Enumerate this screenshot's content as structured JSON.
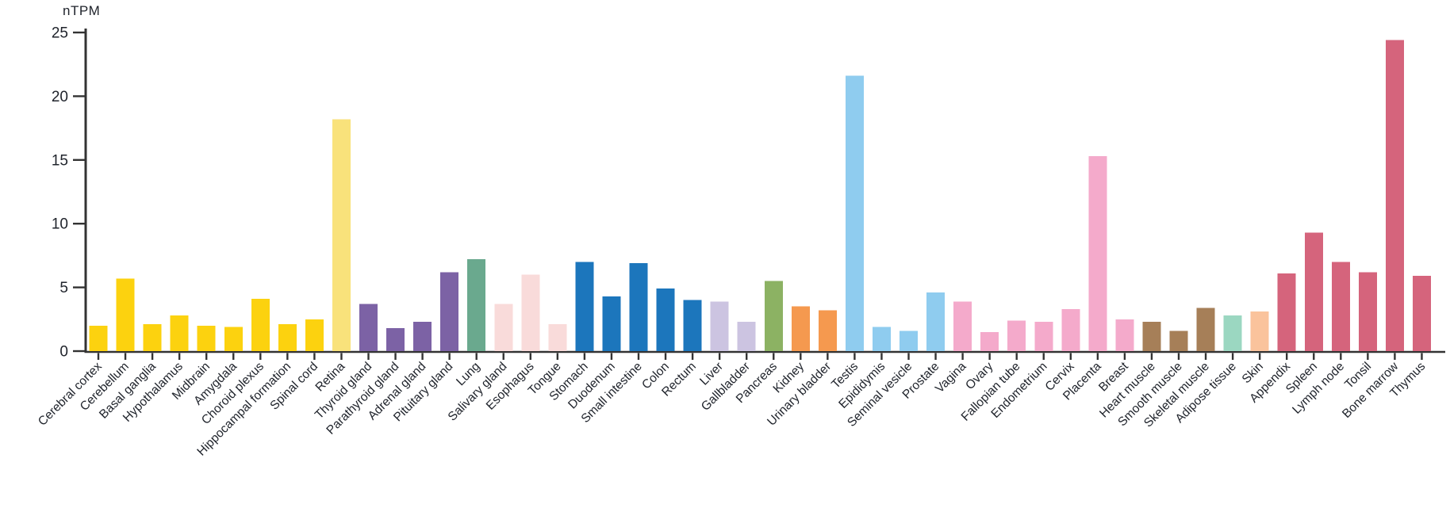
{
  "chart_data": {
    "type": "bar",
    "title": "",
    "ylabel": "nTPM",
    "xlabel": "",
    "ylim": [
      0,
      25
    ],
    "yticks": [
      0,
      5,
      10,
      15,
      20,
      25
    ],
    "grid": false,
    "legend_position": "none",
    "categories": [
      "Cerebral cortex",
      "Cerebellum",
      "Basal ganglia",
      "Hypothalamus",
      "Midbrain",
      "Amygdala",
      "Choroid plexus",
      "Hippocampal formation",
      "Spinal cord",
      "Retina",
      "Thyroid gland",
      "Parathyroid gland",
      "Adrenal gland",
      "Pituitary gland",
      "Lung",
      "Salivary gland",
      "Esophagus",
      "Tongue",
      "Stomach",
      "Duodenum",
      "Small intestine",
      "Colon",
      "Rectum",
      "Liver",
      "Gallbladder",
      "Pancreas",
      "Kidney",
      "Urinary bladder",
      "Testis",
      "Epididymis",
      "Seminal vesicle",
      "Prostate",
      "Vagina",
      "Ovary",
      "Fallopian tube",
      "Endometrium",
      "Cervix",
      "Placenta",
      "Breast",
      "Heart muscle",
      "Smooth muscle",
      "Skeletal muscle",
      "Adipose tissue",
      "Skin",
      "Appendix",
      "Spleen",
      "Lymph node",
      "Tonsil",
      "Bone marrow",
      "Thymus"
    ],
    "values": [
      2.0,
      5.7,
      2.1,
      2.8,
      2.0,
      1.9,
      4.1,
      2.1,
      2.5,
      18.2,
      3.7,
      1.8,
      2.3,
      6.2,
      7.2,
      3.7,
      6.0,
      2.1,
      7.0,
      4.3,
      6.9,
      4.9,
      4.0,
      3.9,
      2.3,
      5.5,
      3.5,
      3.2,
      21.6,
      1.9,
      1.6,
      4.6,
      3.9,
      1.5,
      2.4,
      2.3,
      3.3,
      15.3,
      2.5,
      2.3,
      1.6,
      3.4,
      2.8,
      3.1,
      6.1,
      9.3,
      7.0,
      6.2,
      24.4,
      5.9
    ],
    "color_groups": [
      "brain",
      "brain",
      "brain",
      "brain",
      "brain",
      "brain",
      "brain",
      "brain",
      "brain",
      "retina",
      "endocrine",
      "endocrine",
      "endocrine",
      "endocrine",
      "lung",
      "proximal_digestive",
      "proximal_digestive",
      "proximal_digestive",
      "gi_tract",
      "gi_tract",
      "gi_tract",
      "gi_tract",
      "gi_tract",
      "liver_gallbladder",
      "liver_gallbladder",
      "pancreas",
      "kidney_bladder",
      "kidney_bladder",
      "male_tissues",
      "male_tissues",
      "male_tissues",
      "male_tissues",
      "female_tissues",
      "female_tissues",
      "female_tissues",
      "female_tissues",
      "female_tissues",
      "female_tissues",
      "female_tissues",
      "muscle",
      "muscle",
      "muscle",
      "adipose",
      "skin",
      "blood_immune",
      "blood_immune",
      "blood_immune",
      "blood_immune",
      "blood_immune",
      "blood_immune"
    ],
    "palette": {
      "brain": "#FCD20F",
      "retina": "#F9E27B",
      "endocrine": "#7C62A5",
      "lung": "#6AA98E",
      "proximal_digestive": "#F9DBDA",
      "gi_tract": "#1C76BC",
      "liver_gallbladder": "#CCC4E1",
      "pancreas": "#8CB263",
      "kidney_bladder": "#F5994F",
      "male_tissues": "#8FCCEF",
      "female_tissues": "#F4AACB",
      "muscle": "#A67F58",
      "adipose": "#9BD7C1",
      "skin": "#FAC39C",
      "blood_immune": "#D5647C"
    },
    "axis_color": "#333333",
    "tick_label_color": "#20242c"
  }
}
